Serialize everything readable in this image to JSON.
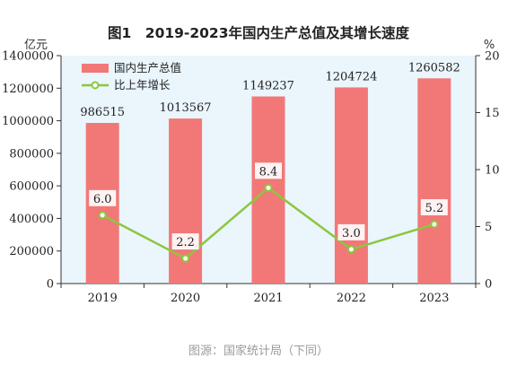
{
  "chart_data": {
    "type": "bar+line",
    "title": "图1　2019-2023年国内生产总值及其增长速度",
    "categories": [
      "2019",
      "2020",
      "2021",
      "2022",
      "2023"
    ],
    "series": [
      {
        "name": "国内生产总值",
        "type": "bar",
        "axis": "left",
        "values": [
          986515,
          1013567,
          1149237,
          1204724,
          1260582
        ],
        "labels": [
          "986515",
          "1013567",
          "1149237",
          "1204724",
          "1260582"
        ],
        "color": "#f27878"
      },
      {
        "name": "比上年增长",
        "type": "line",
        "axis": "right",
        "values": [
          6.0,
          2.2,
          8.4,
          3.0,
          5.2
        ],
        "labels": [
          "6.0",
          "2.2",
          "8.4",
          "3.0",
          "5.2"
        ],
        "color": "#8cc63e"
      }
    ],
    "left_axis": {
      "unit": "亿元",
      "min": 0,
      "max": 1400000,
      "ticks": [
        0,
        200000,
        400000,
        600000,
        800000,
        1000000,
        1200000,
        1400000
      ],
      "tick_labels": [
        "0",
        "200000",
        "400000",
        "600000",
        "800000",
        "1000000",
        "1200000",
        "1400000"
      ]
    },
    "right_axis": {
      "unit": "%",
      "min": 0,
      "max": 20,
      "ticks": [
        0,
        5,
        10,
        15,
        20
      ],
      "tick_labels": [
        "0",
        "5",
        "10",
        "15",
        "20"
      ]
    },
    "grid": false,
    "legend_position": "top-left",
    "plot_background": "#eaf5fc"
  },
  "source_caption": "图源：国家统计局（下同）"
}
